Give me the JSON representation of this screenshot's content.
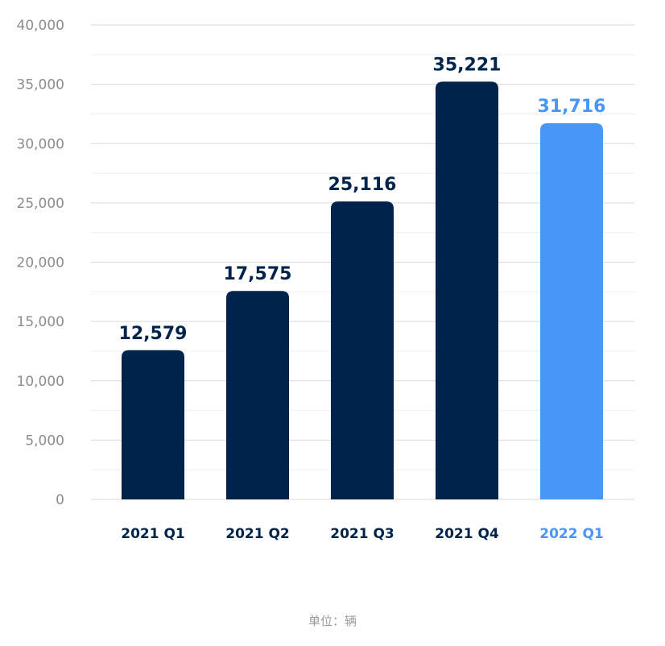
{
  "chart_data": {
    "type": "bar",
    "categories": [
      "2021 Q1",
      "2021 Q2",
      "2021 Q3",
      "2021 Q4",
      "2022 Q1"
    ],
    "values": [
      12579,
      17575,
      25116,
      35221,
      31716
    ],
    "value_labels": [
      "12,579",
      "17,575",
      "25,116",
      "35,221",
      "31,716"
    ],
    "title": "",
    "xlabel": "",
    "ylabel": "",
    "ylim": [
      0,
      40000
    ],
    "y_ticks": [
      0,
      5000,
      10000,
      15000,
      20000,
      25000,
      30000,
      35000,
      40000
    ],
    "y_tick_labels": [
      "0",
      "5,000",
      "10,000",
      "15,000",
      "20,000",
      "25,000",
      "30,000",
      "35,000",
      "40,000"
    ],
    "grid": true,
    "legend": "none",
    "colors": {
      "bar": "#00234b",
      "highlight_bar": "#4796f8",
      "grid": "#d9d9d9",
      "minor_grid": "#efefef",
      "axis_text": "#8c8c8c"
    },
    "highlight_index": 4
  },
  "unit_note": "单位：辆"
}
